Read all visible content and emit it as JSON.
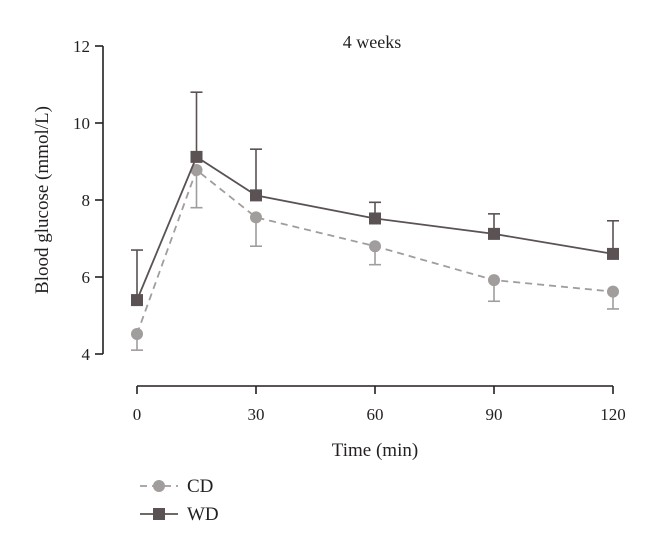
{
  "chart_data": {
    "type": "line",
    "title": "4 weeks",
    "xlabel": "Time (min)",
    "ylabel": "Blood glucose (mmol/L)",
    "xlim": [
      0,
      120
    ],
    "ylim": [
      4,
      12
    ],
    "x_ticks": [
      0,
      30,
      60,
      90,
      120
    ],
    "y_ticks": [
      4,
      6,
      8,
      10,
      12
    ],
    "x_tick_labels": [
      "0",
      "30",
      "60",
      "90",
      "120"
    ],
    "y_tick_labels": [
      "4",
      "6",
      "8",
      "10",
      "12"
    ],
    "grid": false,
    "legend_position": "bottom-left",
    "series": [
      {
        "name": "CD",
        "x": [
          0,
          15,
          30,
          60,
          90,
          120
        ],
        "y": [
          4.52,
          8.78,
          7.55,
          6.8,
          5.92,
          5.62
        ],
        "error": [
          0.42,
          0.98,
          0.75,
          0.48,
          0.55,
          0.45
        ],
        "error_direction": "down",
        "color": "#a09d9c",
        "line_style": "dashed",
        "marker": "circle"
      },
      {
        "name": "WD",
        "x": [
          0,
          15,
          30,
          60,
          90,
          120
        ],
        "y": [
          5.4,
          9.12,
          8.12,
          7.52,
          7.12,
          6.6
        ],
        "error": [
          1.3,
          1.68,
          1.2,
          0.42,
          0.52,
          0.86
        ],
        "error_direction": "up",
        "color": "#5a5253",
        "line_style": "solid",
        "marker": "square"
      }
    ]
  }
}
